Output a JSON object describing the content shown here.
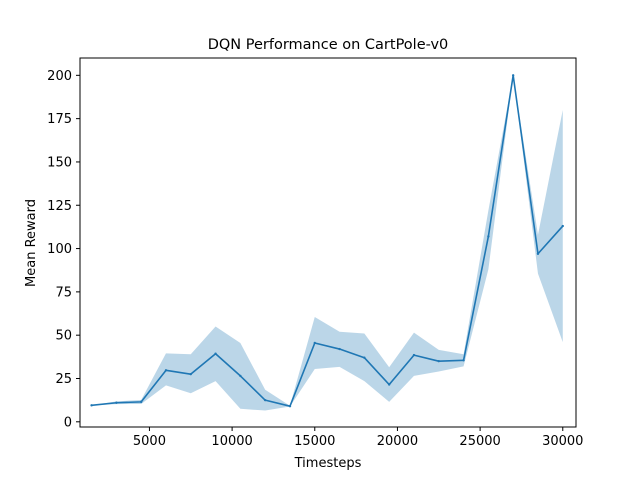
{
  "chart_data": {
    "type": "line",
    "title": "DQN Performance on CartPole-v0",
    "xlabel": "Timesteps",
    "ylabel": "Mean Reward",
    "xlim": [
      800,
      30800
    ],
    "ylim": [
      -3,
      210
    ],
    "xticks": [
      5000,
      10000,
      15000,
      20000,
      25000,
      30000
    ],
    "yticks": [
      0,
      25,
      50,
      75,
      100,
      125,
      150,
      175,
      200
    ],
    "grid": false,
    "legend": "none",
    "series": [
      {
        "color": "#1f77b4",
        "band_color": "#1f77b4",
        "band_opacity": 0.3,
        "x": [
          1500,
          3000,
          4500,
          6000,
          7500,
          9000,
          10500,
          12000,
          13500,
          15000,
          16500,
          18000,
          19500,
          21000,
          22500,
          24000,
          25500,
          27000,
          28500,
          30000
        ],
        "y": [
          9.5,
          11,
          11.5,
          29.7,
          27.5,
          39.3,
          26.5,
          12.5,
          9,
          45.5,
          42,
          37,
          21.5,
          38.5,
          35,
          35.5,
          107,
          200,
          97,
          113
        ],
        "lower": [
          9.5,
          10.2,
          10.3,
          21,
          16.5,
          23.5,
          7.5,
          6.5,
          8.8,
          30.5,
          31.7,
          23.5,
          11.5,
          26.5,
          29,
          32,
          88,
          200,
          85.5,
          46
        ],
        "upper": [
          9.5,
          11.8,
          12.6,
          39.5,
          39,
          55,
          45.5,
          18.5,
          9.3,
          60.5,
          52,
          51,
          31.5,
          51.5,
          41.5,
          39,
          122,
          200,
          108,
          180
        ]
      }
    ]
  }
}
